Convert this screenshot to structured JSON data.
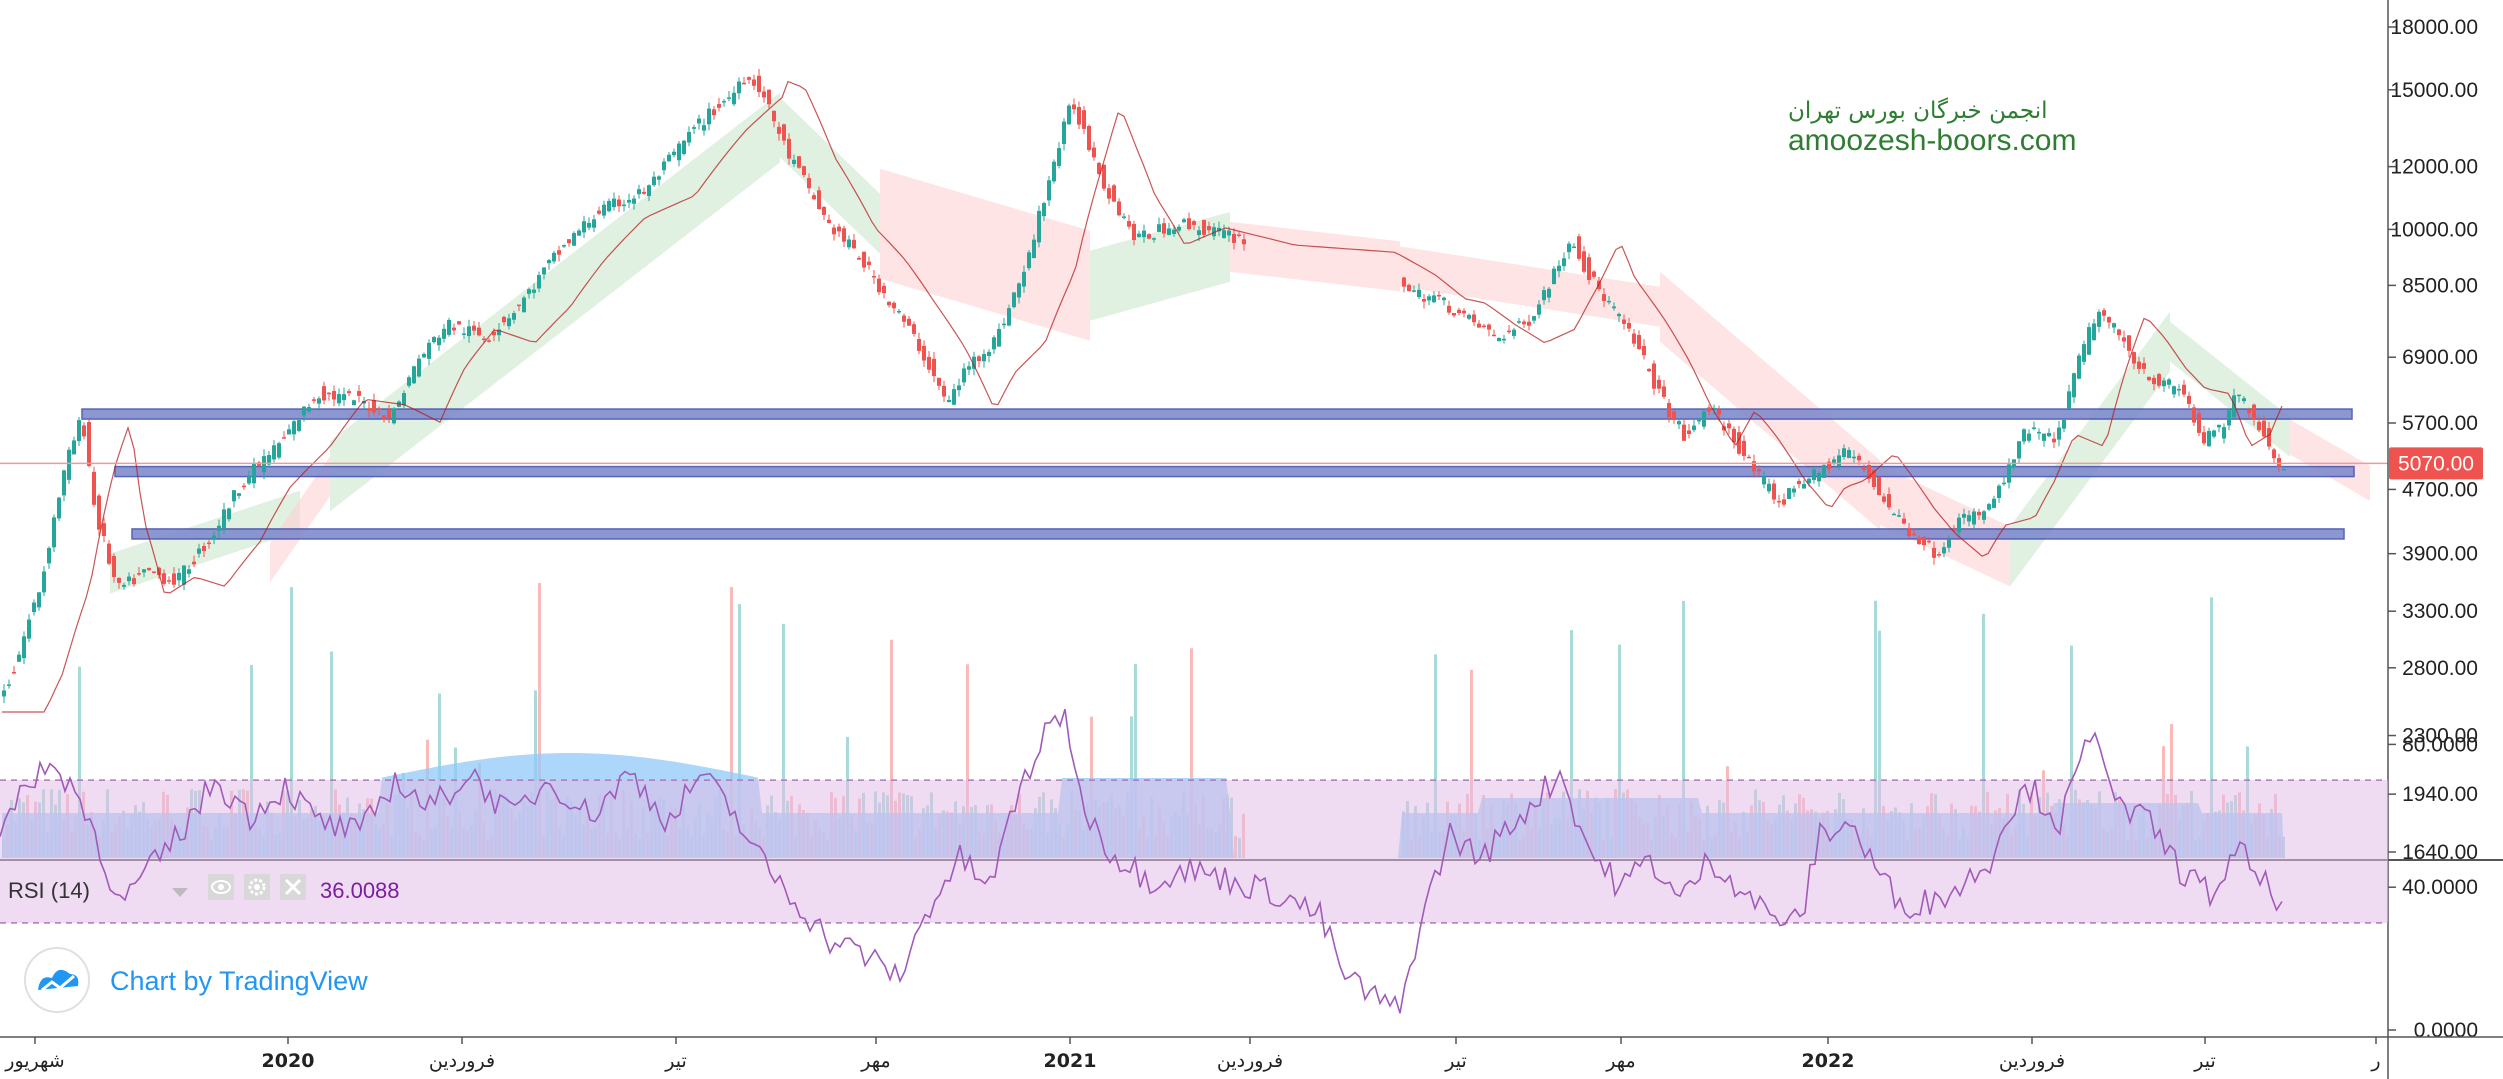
{
  "watermark": {
    "line1": "انجمن خبرگان بورس تهران",
    "line2": "amoozesh-boors.com"
  },
  "branding": {
    "label": "Chart by TradingView",
    "icon": "tradingview-logo-icon"
  },
  "price_label": {
    "value": "5070.00",
    "color": "#ef5350"
  },
  "rsi_panel": {
    "label": "RSI (14)",
    "value": "36.0088",
    "icons": [
      "eye-icon",
      "gear-icon",
      "close-icon"
    ]
  },
  "colors": {
    "up": "#26a69a",
    "down": "#ef5350",
    "zone": "#7986cb",
    "volume_ma": "#90caf9",
    "rsi_line": "#9c27b0",
    "rsi_band": "#e1bee7",
    "kijun": "#b71c1c"
  },
  "chart_data": {
    "type": "candlestick",
    "symbol": "",
    "y_scale": "log",
    "price_axis_ticks": [
      "18000.00",
      "15000.00",
      "12000.00",
      "10000.00",
      "8500.00",
      "6900.00",
      "5700.00",
      "4700.00",
      "3900.00",
      "3300.00",
      "2800.00",
      "2300.00",
      "1940.00",
      "1640.00"
    ],
    "time_axis_ticks": [
      "شهریور",
      "2020",
      "فروردین",
      "تیر",
      "مهر",
      "2021",
      "فروردین",
      "تیر",
      "مهر",
      "2022",
      "فروردین",
      "تیر",
      "ر"
    ],
    "last_price": 5070,
    "close_path": [
      [
        0,
        2500
      ],
      [
        18,
        2800
      ],
      [
        45,
        3600
      ],
      [
        70,
        5100
      ],
      [
        85,
        5800
      ],
      [
        98,
        4400
      ],
      [
        120,
        3500
      ],
      [
        150,
        3700
      ],
      [
        180,
        3600
      ],
      [
        215,
        4100
      ],
      [
        245,
        4800
      ],
      [
        285,
        5400
      ],
      [
        320,
        6200
      ],
      [
        360,
        6100
      ],
      [
        395,
        5800
      ],
      [
        420,
        6800
      ],
      [
        450,
        7600
      ],
      [
        490,
        7300
      ],
      [
        525,
        8100
      ],
      [
        560,
        9300
      ],
      [
        600,
        10500
      ],
      [
        650,
        11200
      ],
      [
        700,
        13500
      ],
      [
        740,
        15000
      ],
      [
        720,
        16000
      ],
      [
        760,
        15300
      ],
      [
        790,
        12500
      ],
      [
        830,
        10200
      ],
      [
        860,
        9300
      ],
      [
        890,
        8200
      ],
      [
        920,
        7200
      ],
      [
        950,
        6000
      ],
      [
        970,
        6700
      ],
      [
        1000,
        7300
      ],
      [
        1030,
        9000
      ],
      [
        1060,
        12500
      ],
      [
        1075,
        14500
      ],
      [
        1090,
        13000
      ],
      [
        1110,
        11200
      ],
      [
        1140,
        9700
      ],
      [
        1180,
        10200
      ],
      [
        1250,
        9700
      ],
      [
        1300,
        9600
      ],
      [
        1350,
        9500
      ],
      [
        1390,
        8900
      ],
      [
        1420,
        8300
      ],
      [
        1440,
        8200
      ],
      [
        1470,
        7700
      ],
      [
        1500,
        7300
      ],
      [
        1530,
        7600
      ],
      [
        1555,
        8700
      ],
      [
        1575,
        9800
      ],
      [
        1590,
        8800
      ],
      [
        1620,
        7800
      ],
      [
        1645,
        6900
      ],
      [
        1665,
        6100
      ],
      [
        1690,
        5400
      ],
      [
        1710,
        6000
      ],
      [
        1730,
        5600
      ],
      [
        1760,
        4900
      ],
      [
        1785,
        4500
      ],
      [
        1800,
        4800
      ],
      [
        1820,
        4900
      ],
      [
        1850,
        5300
      ],
      [
        1870,
        4900
      ],
      [
        1890,
        4500
      ],
      [
        1910,
        4200
      ],
      [
        1940,
        3900
      ],
      [
        1960,
        4300
      ],
      [
        1990,
        4400
      ],
      [
        2010,
        4900
      ],
      [
        2030,
        5600
      ],
      [
        2060,
        5400
      ],
      [
        2080,
        6700
      ],
      [
        2100,
        7900
      ],
      [
        2120,
        7400
      ],
      [
        2140,
        6800
      ],
      [
        2160,
        6400
      ],
      [
        2185,
        6300
      ],
      [
        2205,
        5400
      ],
      [
        2225,
        5600
      ],
      [
        2240,
        6200
      ],
      [
        2255,
        5900
      ],
      [
        2270,
        5400
      ],
      [
        2282,
        5070
      ]
    ],
    "gaps": [
      [
        1243,
        1400
      ]
    ],
    "support_resistance_zones": [
      {
        "price": 5850,
        "x_from": 82,
        "x_to": 2352
      },
      {
        "price": 4950,
        "x_from": 115,
        "x_to": 2354
      },
      {
        "price": 4130,
        "x_from": 132,
        "x_to": 2344
      }
    ],
    "rsi": {
      "upper_band": 70,
      "lower_band": 30,
      "ticks": [
        "80.0000",
        "40.0000",
        "0.0000"
      ],
      "last": 36.0088,
      "path": [
        [
          0,
          55
        ],
        [
          40,
          74
        ],
        [
          70,
          70
        ],
        [
          95,
          55
        ],
        [
          120,
          35
        ],
        [
          150,
          45
        ],
        [
          180,
          55
        ],
        [
          215,
          70
        ],
        [
          250,
          60
        ],
        [
          285,
          68
        ],
        [
          320,
          58
        ],
        [
          360,
          55
        ],
        [
          395,
          70
        ],
        [
          430,
          62
        ],
        [
          470,
          72
        ],
        [
          510,
          60
        ],
        [
          550,
          70
        ],
        [
          590,
          60
        ],
        [
          630,
          72
        ],
        [
          670,
          58
        ],
        [
          700,
          72
        ],
        [
          735,
          60
        ],
        [
          760,
          48
        ],
        [
          790,
          38
        ],
        [
          830,
          25
        ],
        [
          860,
          22
        ],
        [
          880,
          18
        ],
        [
          900,
          15
        ],
        [
          930,
          35
        ],
        [
          960,
          48
        ],
        [
          990,
          40
        ],
        [
          1020,
          68
        ],
        [
          1045,
          82
        ],
        [
          1065,
          90
        ],
        [
          1080,
          65
        ],
        [
          1110,
          50
        ],
        [
          1150,
          42
        ],
        [
          1190,
          45
        ],
        [
          1230,
          42
        ],
        [
          1280,
          38
        ],
        [
          1320,
          32
        ],
        [
          1345,
          15
        ],
        [
          1370,
          10
        ],
        [
          1400,
          5
        ],
        [
          1420,
          30
        ],
        [
          1450,
          55
        ],
        [
          1480,
          48
        ],
        [
          1520,
          60
        ],
        [
          1560,
          72
        ],
        [
          1590,
          50
        ],
        [
          1620,
          40
        ],
        [
          1650,
          48
        ],
        [
          1680,
          36
        ],
        [
          1710,
          48
        ],
        [
          1740,
          40
        ],
        [
          1770,
          32
        ],
        [
          1800,
          30
        ],
        [
          1820,
          55
        ],
        [
          1850,
          58
        ],
        [
          1870,
          48
        ],
        [
          1900,
          35
        ],
        [
          1930,
          36
        ],
        [
          1960,
          40
        ],
        [
          1990,
          48
        ],
        [
          2010,
          62
        ],
        [
          2030,
          68
        ],
        [
          2060,
          58
        ],
        [
          2085,
          78
        ],
        [
          2100,
          82
        ],
        [
          2120,
          62
        ],
        [
          2150,
          58
        ],
        [
          2180,
          45
        ],
        [
          2210,
          38
        ],
        [
          2240,
          50
        ],
        [
          2260,
          42
        ],
        [
          2282,
          36
        ]
      ]
    }
  }
}
